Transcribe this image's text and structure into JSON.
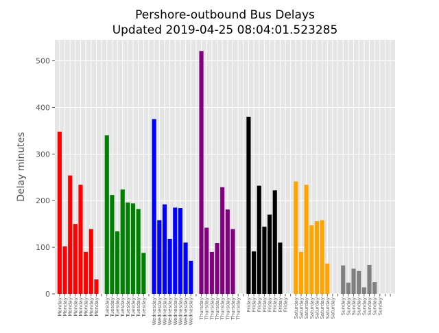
{
  "chart_data": {
    "type": "bar",
    "title": "Pershore-outbound Bus Delays",
    "subtitle": "Updated 2019-04-25 08:04:01.523285",
    "xlabel": "",
    "ylabel": "Delay minutes",
    "ylim": [
      0,
      545
    ],
    "yticks": [
      0,
      100,
      200,
      300,
      400,
      500
    ],
    "grid": true,
    "categories": [
      "Monday",
      "Monday",
      "Monday",
      "Monday",
      "Monday",
      "Monday",
      "Monday",
      "Monday",
      "",
      "Tuesday",
      "Tuesday",
      "Tuesday",
      "Tuesday",
      "Tuesday",
      "Tuesday",
      "Tuesday",
      "Tuesday",
      "",
      "Wednesday",
      "Wednesday",
      "Wednesday",
      "Wednesday",
      "Wednesday",
      "Wednesday",
      "Wednesday",
      "Wednesday",
      "",
      "Thursday",
      "Thursday",
      "Thursday",
      "Thursday",
      "Thursday",
      "Thursday",
      "Thursday",
      "Thursday",
      "",
      "Friday",
      "Friday",
      "Friday",
      "Friday",
      "Friday",
      "Friday",
      "Friday",
      "Friday",
      "",
      "Saturday",
      "Saturday",
      "Saturday",
      "Saturday",
      "Saturday",
      "Saturday",
      "Saturday",
      "Saturday",
      "",
      "Sunday",
      "Sunday",
      "Sunday",
      "Sunday",
      "Sunday",
      "Sunday",
      "Sunday",
      "Sunday",
      "",
      ""
    ],
    "values": [
      348,
      102,
      254,
      150,
      234,
      90,
      139,
      31,
      0,
      340,
      212,
      134,
      224,
      196,
      194,
      182,
      88,
      0,
      375,
      158,
      192,
      118,
      185,
      184,
      110,
      71,
      0,
      521,
      142,
      90,
      109,
      229,
      181,
      139,
      0,
      0,
      380,
      91,
      232,
      144,
      170,
      222,
      110,
      0,
      0,
      241,
      90,
      234,
      147,
      156,
      158,
      65,
      0,
      0,
      61,
      24,
      54,
      49,
      14,
      62,
      25,
      0,
      0,
      0
    ],
    "day_colors": {
      "Monday": "#ff0000",
      "Tuesday": "#008000",
      "Wednesday": "#0000ff",
      "Thursday": "#800080",
      "Friday": "#000000",
      "Saturday": "#ffa500",
      "Sunday": "#808080"
    }
  }
}
